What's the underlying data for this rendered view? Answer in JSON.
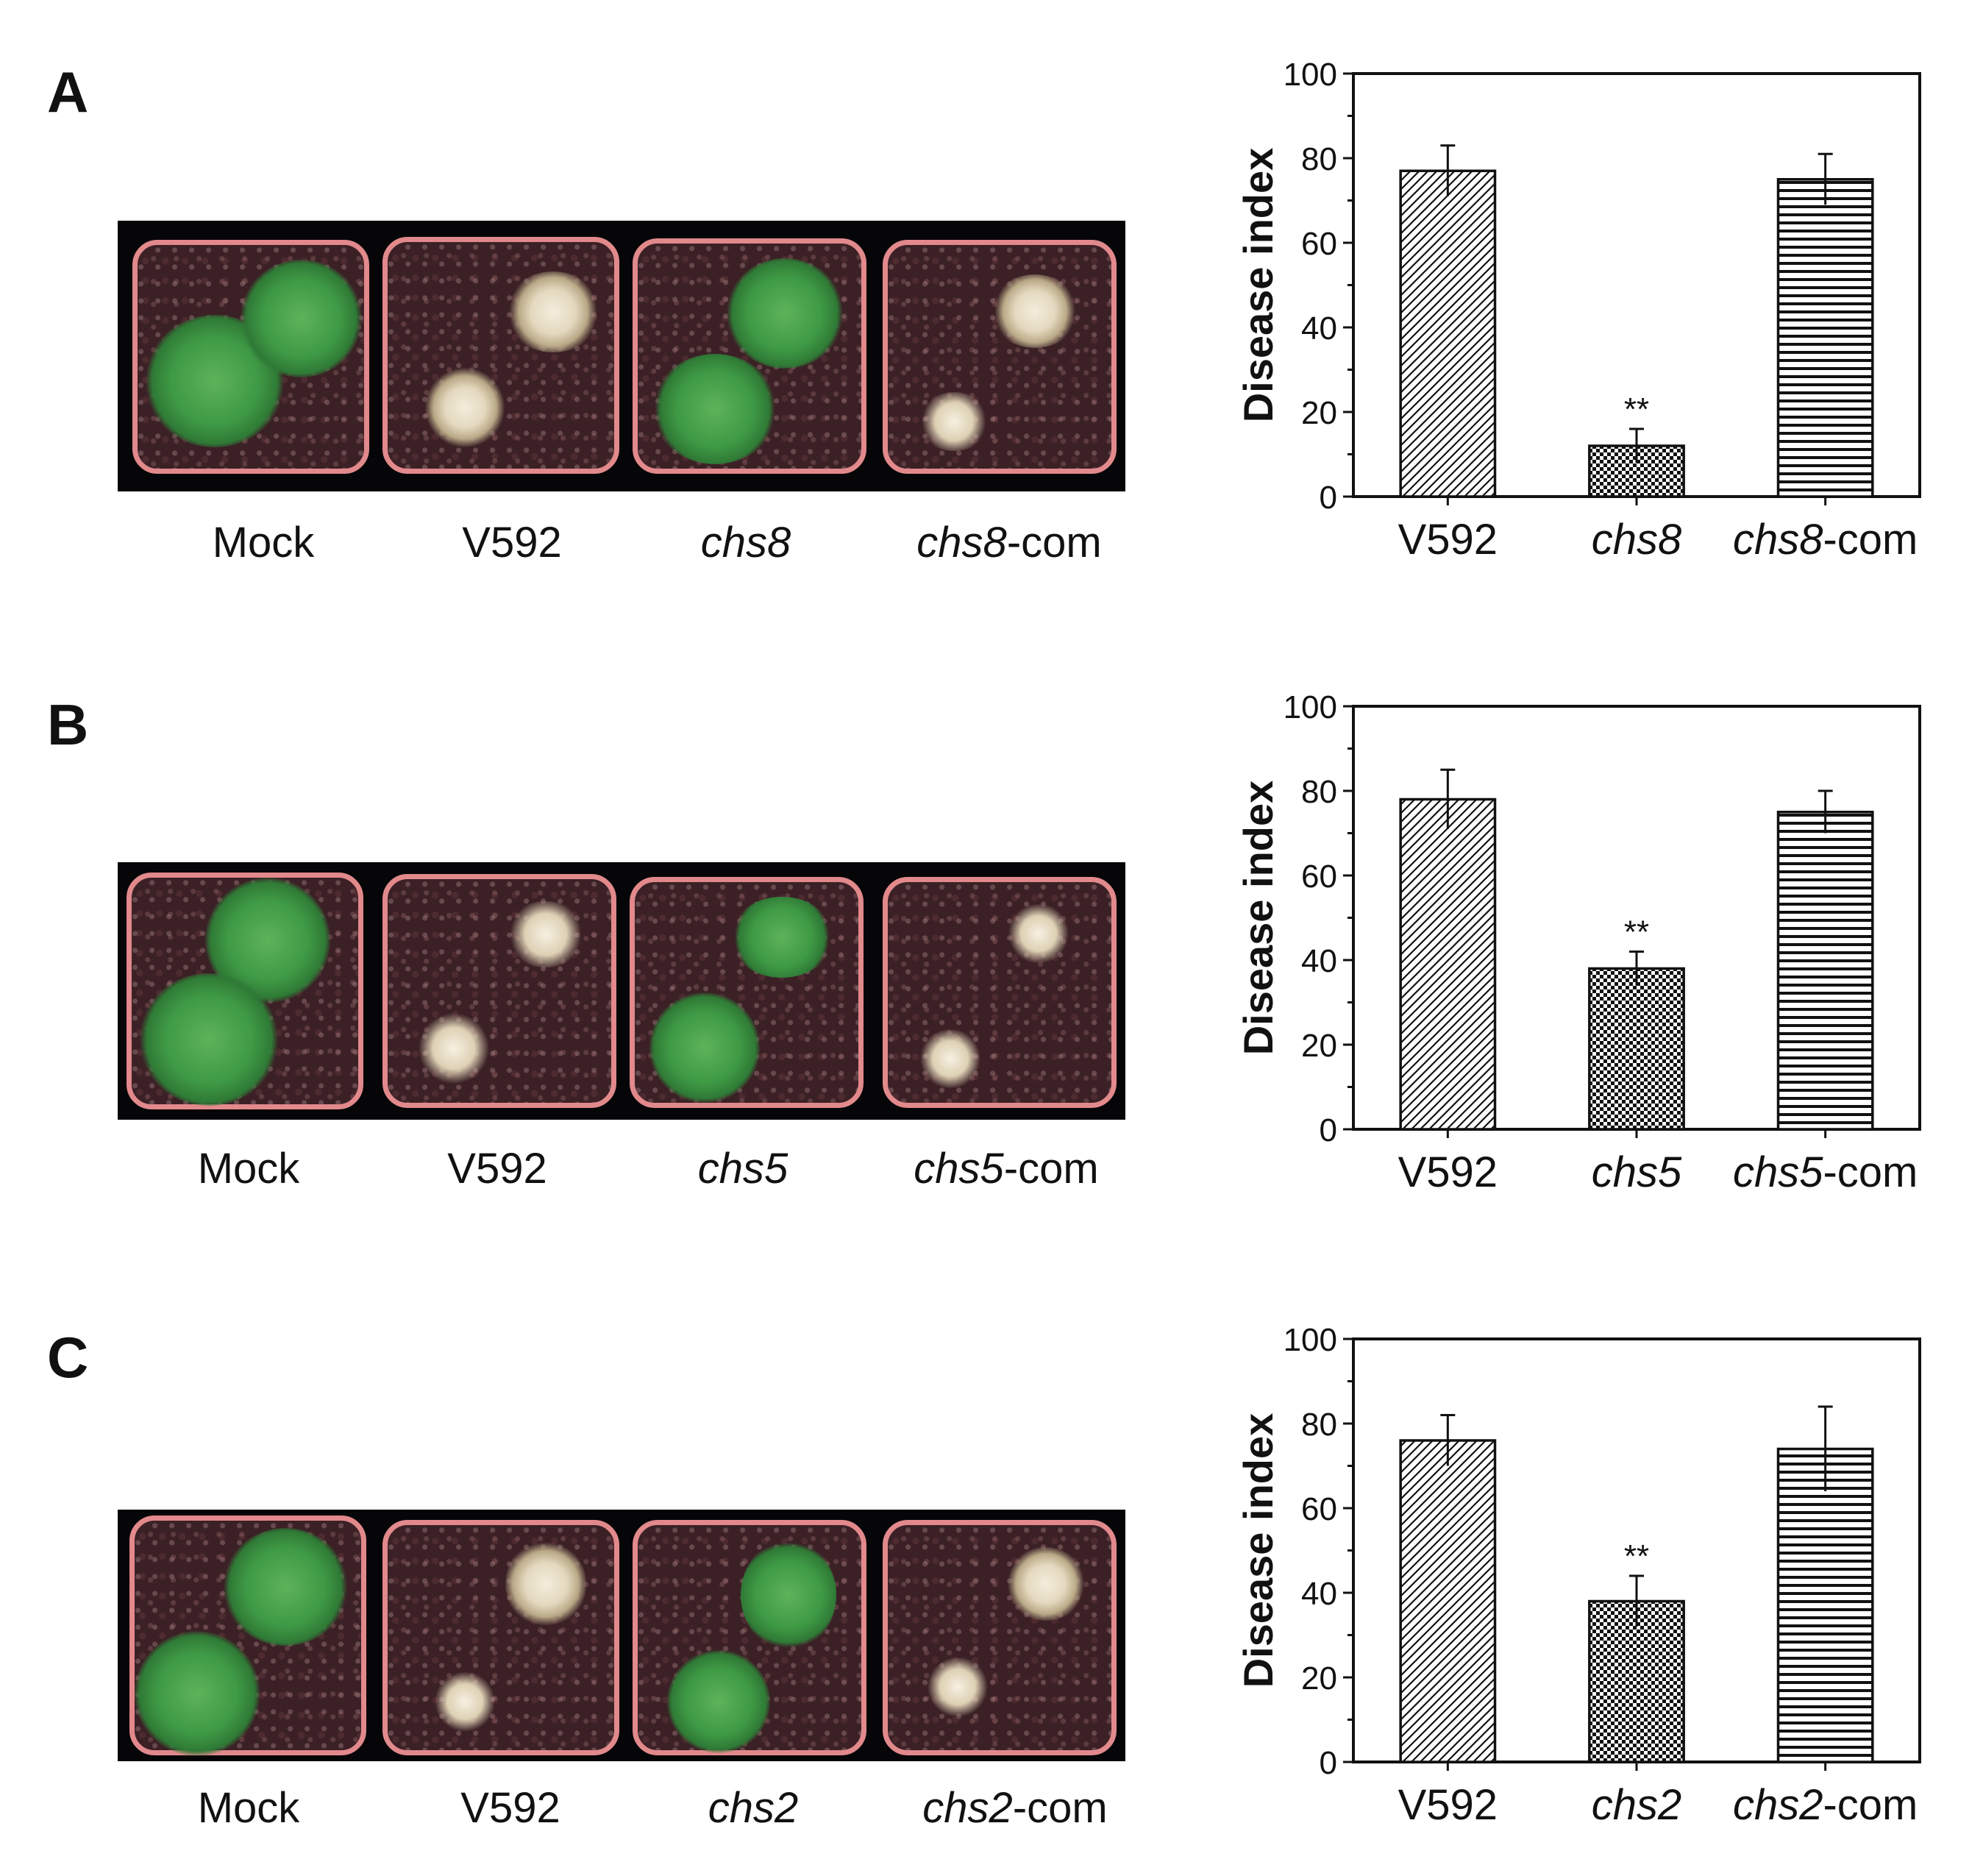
{
  "panels": [
    {
      "letter": "A",
      "photo_labels": [
        {
          "italic": "",
          "rest": "Mock"
        },
        {
          "italic": "",
          "rest": "V592"
        },
        {
          "italic": "chs8",
          "rest": ""
        },
        {
          "italic": "chs8",
          "rest": "-com"
        }
      ]
    },
    {
      "letter": "B",
      "photo_labels": [
        {
          "italic": "",
          "rest": "Mock"
        },
        {
          "italic": "",
          "rest": "V592"
        },
        {
          "italic": "chs5",
          "rest": ""
        },
        {
          "italic": "chs5",
          "rest": "-com"
        }
      ]
    },
    {
      "letter": "C",
      "photo_labels": [
        {
          "italic": "",
          "rest": "Mock"
        },
        {
          "italic": "",
          "rest": "V592"
        },
        {
          "italic": "chs2",
          "rest": ""
        },
        {
          "italic": "chs2",
          "rest": "-com"
        }
      ]
    }
  ],
  "chart_data": [
    {
      "type": "bar",
      "panel": "A",
      "ylabel": "Disease index",
      "ylim": [
        0,
        100
      ],
      "yticks": [
        0,
        20,
        40,
        60,
        80,
        100
      ],
      "categories": [
        {
          "italic": "",
          "rest": "V592"
        },
        {
          "italic": "chs8",
          "rest": ""
        },
        {
          "italic": "chs8",
          "rest": "-com"
        }
      ],
      "values": [
        77,
        12,
        75
      ],
      "errors": [
        6,
        4,
        6
      ],
      "patterns": [
        "diagonal",
        "dots",
        "horizontal"
      ],
      "annotations": [
        "",
        "**",
        ""
      ]
    },
    {
      "type": "bar",
      "panel": "B",
      "ylabel": "Disease index",
      "ylim": [
        0,
        100
      ],
      "yticks": [
        0,
        20,
        40,
        60,
        80,
        100
      ],
      "categories": [
        {
          "italic": "",
          "rest": "V592"
        },
        {
          "italic": "chs5",
          "rest": ""
        },
        {
          "italic": "chs5",
          "rest": "-com"
        }
      ],
      "values": [
        78,
        38,
        75
      ],
      "errors": [
        7,
        4,
        5
      ],
      "patterns": [
        "diagonal",
        "dots",
        "horizontal"
      ],
      "annotations": [
        "",
        "**",
        ""
      ]
    },
    {
      "type": "bar",
      "panel": "C",
      "ylabel": "Disease index",
      "ylim": [
        0,
        100
      ],
      "yticks": [
        0,
        20,
        40,
        60,
        80,
        100
      ],
      "categories": [
        {
          "italic": "",
          "rest": "V592"
        },
        {
          "italic": "chs2",
          "rest": ""
        },
        {
          "italic": "chs2",
          "rest": "-com"
        }
      ],
      "values": [
        76,
        38,
        74
      ],
      "errors": [
        6,
        6,
        10
      ],
      "patterns": [
        "diagonal",
        "dots",
        "horizontal"
      ],
      "annotations": [
        "",
        "**",
        ""
      ]
    }
  ]
}
